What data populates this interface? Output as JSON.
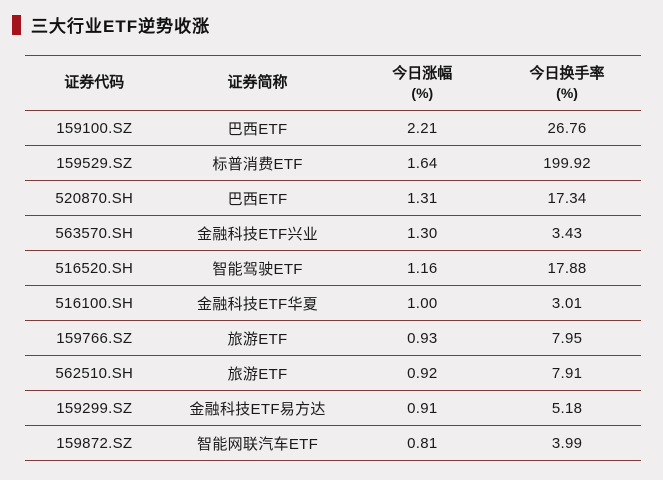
{
  "title": "三大行业ETF逆势收涨",
  "accent_color": "#a5121b",
  "line_color": "#7e3d3d",
  "background_color": "#f0eeee",
  "table": {
    "headers": [
      {
        "line1": "证券代码",
        "line2": ""
      },
      {
        "line1": "证券简称",
        "line2": ""
      },
      {
        "line1": "今日涨幅",
        "line2": "(%)"
      },
      {
        "line1": "今日换手率",
        "line2": "(%)"
      }
    ],
    "rows": [
      {
        "code": "159100.SZ",
        "name": "巴西ETF",
        "change": "2.21",
        "turnover": "26.76"
      },
      {
        "code": "159529.SZ",
        "name": "标普消费ETF",
        "change": "1.64",
        "turnover": "199.92"
      },
      {
        "code": "520870.SH",
        "name": "巴西ETF",
        "change": "1.31",
        "turnover": "17.34"
      },
      {
        "code": "563570.SH",
        "name": "金融科技ETF兴业",
        "change": "1.30",
        "turnover": "3.43"
      },
      {
        "code": "516520.SH",
        "name": "智能驾驶ETF",
        "change": "1.16",
        "turnover": "17.88"
      },
      {
        "code": "516100.SH",
        "name": "金融科技ETF华夏",
        "change": "1.00",
        "turnover": "3.01"
      },
      {
        "code": "159766.SZ",
        "name": "旅游ETF",
        "change": "0.93",
        "turnover": "7.95"
      },
      {
        "code": "562510.SH",
        "name": "旅游ETF",
        "change": "0.92",
        "turnover": "7.91"
      },
      {
        "code": "159299.SZ",
        "name": "金融科技ETF易方达",
        "change": "0.91",
        "turnover": "5.18"
      },
      {
        "code": "159872.SZ",
        "name": "智能网联汽车ETF",
        "change": "0.81",
        "turnover": "3.99"
      }
    ]
  },
  "chart_data": {
    "type": "table",
    "title": "三大行业ETF逆势收涨",
    "columns": [
      "证券代码",
      "证券简称",
      "今日涨幅(%)",
      "今日换手率(%)"
    ],
    "rows": [
      [
        "159100.SZ",
        "巴西ETF",
        2.21,
        26.76
      ],
      [
        "159529.SZ",
        "标普消费ETF",
        1.64,
        199.92
      ],
      [
        "520870.SH",
        "巴西ETF",
        1.31,
        17.34
      ],
      [
        "563570.SH",
        "金融科技ETF兴业",
        1.3,
        3.43
      ],
      [
        "516520.SH",
        "智能驾驶ETF",
        1.16,
        17.88
      ],
      [
        "516100.SH",
        "金融科技ETF华夏",
        1.0,
        3.01
      ],
      [
        "159766.SZ",
        "旅游ETF",
        0.93,
        7.95
      ],
      [
        "562510.SH",
        "旅游ETF",
        0.92,
        7.91
      ],
      [
        "159299.SZ",
        "金融科技ETF易方达",
        0.91,
        5.18
      ],
      [
        "159872.SZ",
        "智能网联汽车ETF",
        0.81,
        3.99
      ]
    ]
  }
}
